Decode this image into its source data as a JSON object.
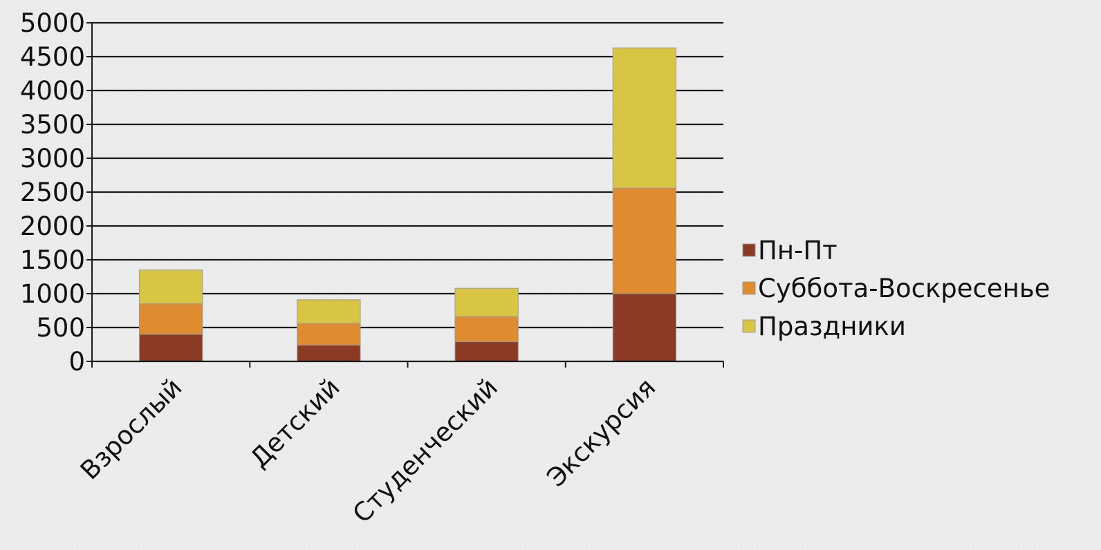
{
  "chart_data": {
    "type": "bar",
    "stacked": true,
    "categories": [
      "Взрослый",
      "Детский",
      "Студенческий",
      "Экскурсия"
    ],
    "series": [
      {
        "name": "Пн-Пт",
        "color": "#8b3a24",
        "values": [
          400,
          240,
          290,
          1000
        ]
      },
      {
        "name": "Суббота-Воскресенье",
        "color": "#df8c30",
        "values": [
          450,
          320,
          370,
          1560
        ]
      },
      {
        "name": "Праздники",
        "color": "#d8c544",
        "values": [
          500,
          350,
          420,
          2070
        ]
      }
    ],
    "ylim": [
      0,
      5000
    ],
    "yticks": [
      0,
      500,
      1000,
      1500,
      2000,
      2500,
      3000,
      3500,
      4000,
      4500,
      5000
    ],
    "grid": true,
    "legend_position": "right"
  }
}
